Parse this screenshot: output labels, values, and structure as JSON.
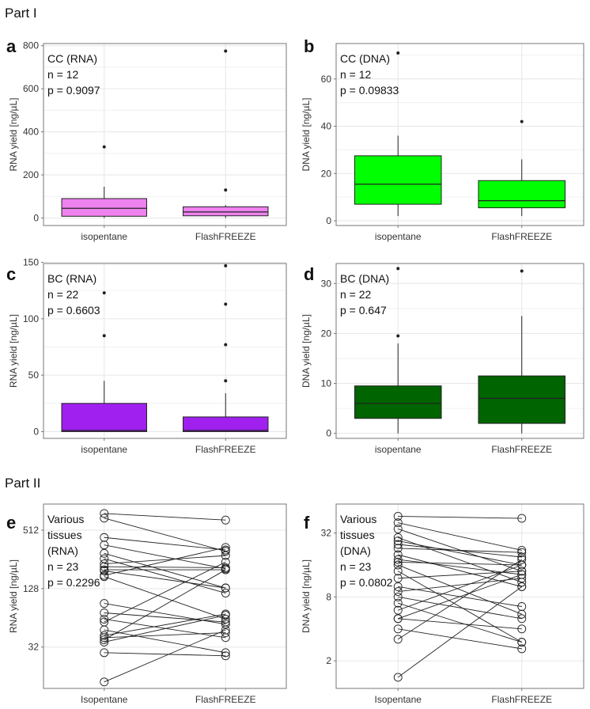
{
  "sections": [
    "Part I",
    "Part II"
  ],
  "colors": {
    "grid": "#e6e6e6",
    "frame": "#777777",
    "line": "#222222"
  },
  "chart_data": [
    {
      "type": "box",
      "panel": "a",
      "ylabel": "RNA yield [ng/µL]",
      "annotations": [
        "CC (RNA)",
        "n = 12",
        "p = 0.9097"
      ],
      "ylim": [
        -35,
        810
      ],
      "yticks": [
        0,
        200,
        400,
        600,
        800
      ],
      "fill": "#ee82ee",
      "categories": [
        "isopentane",
        "FlashFREEZE"
      ],
      "boxes": [
        {
          "q1": 8,
          "median": 45,
          "q3": 90,
          "whisker_low": 0,
          "whisker_high": 145,
          "outliers": [
            330
          ]
        },
        {
          "q1": 10,
          "median": 28,
          "q3": 52,
          "whisker_low": 0,
          "whisker_high": 60,
          "outliers": [
            130,
            775
          ]
        }
      ]
    },
    {
      "type": "box",
      "panel": "b",
      "ylabel": "DNA yield [ng/µL]",
      "annotations": [
        "CC (DNA)",
        "n = 12",
        "p = 0.09833"
      ],
      "ylim": [
        -2,
        75
      ],
      "yticks": [
        0,
        20,
        40,
        60
      ],
      "fill": "#00ff00",
      "categories": [
        "isopentane",
        "FlashFREEZE"
      ],
      "boxes": [
        {
          "q1": 7,
          "median": 15.5,
          "q3": 27.5,
          "whisker_low": 2,
          "whisker_high": 36,
          "outliers": [
            71
          ]
        },
        {
          "q1": 5.5,
          "median": 8.5,
          "q3": 17,
          "whisker_low": 2,
          "whisker_high": 26,
          "outliers": [
            42
          ]
        }
      ]
    },
    {
      "type": "box",
      "panel": "c",
      "ylabel": "RNA yield [ng/µL]",
      "annotations": [
        "BC (RNA)",
        "n = 22",
        "p = 0.6603"
      ],
      "ylim": [
        -6,
        149
      ],
      "yticks": [
        0,
        50,
        100,
        150
      ],
      "fill": "#a020f0",
      "categories": [
        "isopentane",
        "FlashFREEZE"
      ],
      "boxes": [
        {
          "q1": 0,
          "median": 1,
          "q3": 25,
          "whisker_low": 0,
          "whisker_high": 45,
          "outliers": [
            85,
            123
          ]
        },
        {
          "q1": 0,
          "median": 1,
          "q3": 13,
          "whisker_low": 0,
          "whisker_high": 34,
          "outliers": [
            45,
            77,
            113,
            147
          ]
        }
      ]
    },
    {
      "type": "box",
      "panel": "d",
      "ylabel": "DNA yield [ng/µL]",
      "annotations": [
        "BC (DNA)",
        "n = 22",
        "p = 0.647"
      ],
      "ylim": [
        -1,
        34
      ],
      "yticks": [
        0,
        10,
        20,
        30
      ],
      "fill": "#006400",
      "categories": [
        "isopentane",
        "FlashFREEZE"
      ],
      "boxes": [
        {
          "q1": 3,
          "median": 6,
          "q3": 9.5,
          "whisker_low": 0,
          "whisker_high": 18,
          "outliers": [
            19.5,
            33
          ]
        },
        {
          "q1": 2,
          "median": 7,
          "q3": 11.5,
          "whisker_low": 0,
          "whisker_high": 23.5,
          "outliers": [
            32.5
          ]
        }
      ]
    },
    {
      "type": "paired",
      "panel": "e",
      "ylabel": "RNA yield [ng/µL]",
      "yscale": "log2",
      "annotations": [
        "Various",
        "tissues",
        "(RNA)",
        "n = 23",
        "p = 0.2296"
      ],
      "ylim": [
        12,
        950
      ],
      "yticks": [
        32,
        128,
        512
      ],
      "categories": [
        "Isopentane",
        "FlashFREEZE"
      ],
      "pairs": [
        [
          760,
          650
        ],
        [
          680,
          310
        ],
        [
          430,
          320
        ],
        [
          360,
          205
        ],
        [
          295,
          130
        ],
        [
          260,
          115
        ],
        [
          230,
          280
        ],
        [
          215,
          210
        ],
        [
          200,
          200
        ],
        [
          195,
          130
        ],
        [
          175,
          340
        ],
        [
          170,
          62
        ],
        [
          90,
          55
        ],
        [
          72,
          58
        ],
        [
          62,
          40
        ],
        [
          58,
          240
        ],
        [
          48,
          28
        ],
        [
          42,
          70
        ],
        [
          40,
          45
        ],
        [
          38,
          200
        ],
        [
          36,
          68
        ],
        [
          28,
          26
        ],
        [
          14,
          48
        ]
      ]
    },
    {
      "type": "paired",
      "panel": "f",
      "ylabel": "DNA yield [ng/µL]",
      "yscale": "log2",
      "annotations": [
        "Various",
        "tissues",
        "(DNA)",
        "n = 23",
        "p = 0.0802"
      ],
      "ylim": [
        1.1,
        60
      ],
      "yticks": [
        2,
        8,
        32
      ],
      "categories": [
        "Isopentane",
        "FlashFREEZE"
      ],
      "pairs": [
        [
          46,
          44
        ],
        [
          40,
          22
        ],
        [
          35,
          14
        ],
        [
          29,
          11
        ],
        [
          27,
          16
        ],
        [
          25,
          19
        ],
        [
          23,
          21
        ],
        [
          20,
          10
        ],
        [
          18,
          13
        ],
        [
          17,
          16
        ],
        [
          16,
          5.5
        ],
        [
          14,
          3.0
        ],
        [
          12,
          14
        ],
        [
          10,
          6.5
        ],
        [
          9,
          12
        ],
        [
          8,
          5
        ],
        [
          7,
          3.0
        ],
        [
          6,
          16
        ],
        [
          5,
          4
        ],
        [
          5,
          13
        ],
        [
          4,
          2.6
        ],
        [
          3.2,
          18
        ],
        [
          1.4,
          10
        ]
      ]
    }
  ]
}
